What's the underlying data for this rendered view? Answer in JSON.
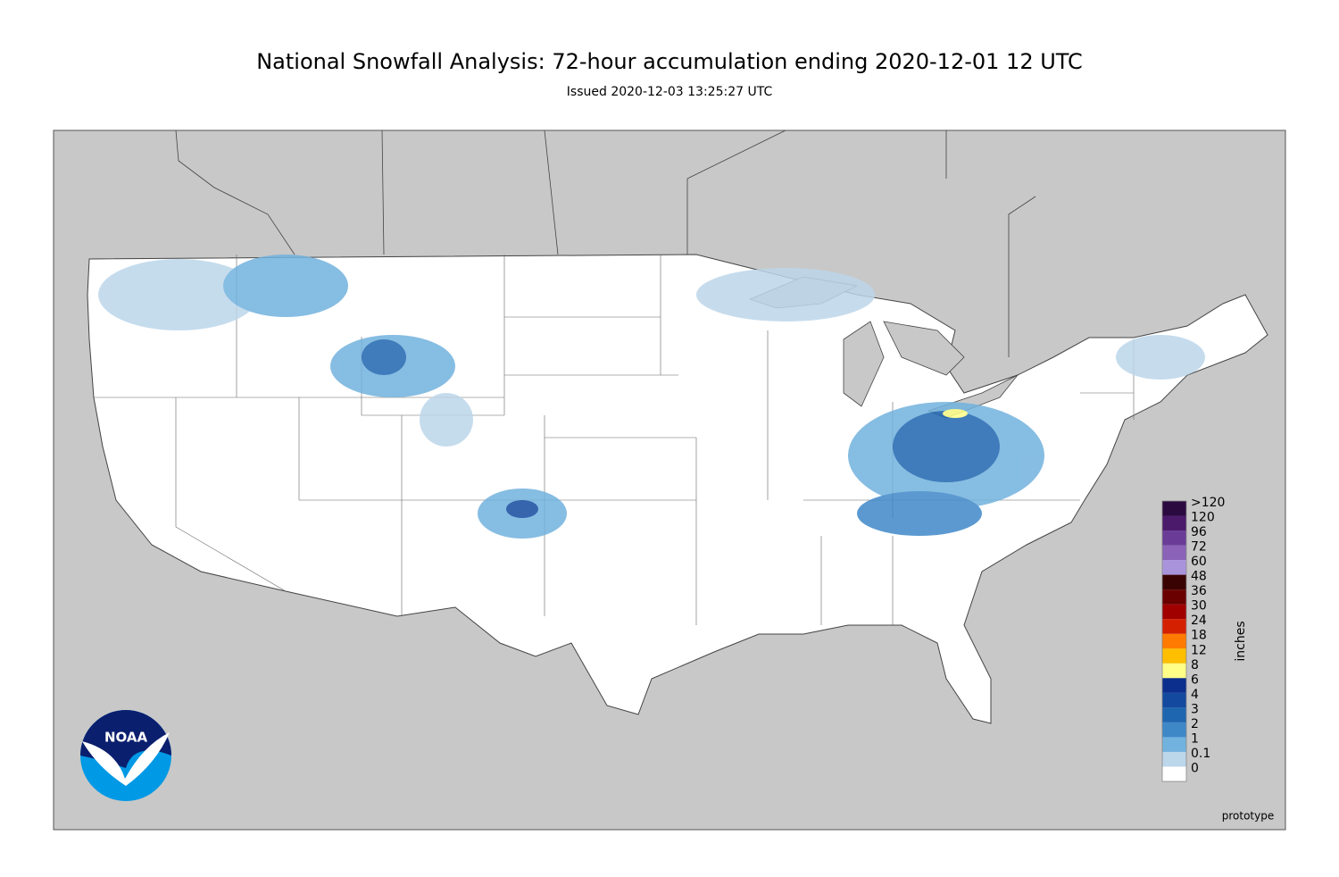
{
  "header": {
    "title": "National Snowfall Analysis: 72-hour accumulation ending 2020-12-01 12 UTC",
    "subtitle": "Issued 2020-12-03 13:25:27 UTC"
  },
  "legend": {
    "unit": "inches",
    "items": [
      {
        "label": ">120",
        "color": "#2b0b3f"
      },
      {
        "label": "120",
        "color": "#4b1a6b"
      },
      {
        "label": "96",
        "color": "#6a3c97"
      },
      {
        "label": "72",
        "color": "#8a63b8"
      },
      {
        "label": "60",
        "color": "#a994dc"
      },
      {
        "label": "48",
        "color": "#3a0303"
      },
      {
        "label": "36",
        "color": "#6a0000"
      },
      {
        "label": "30",
        "color": "#a00000"
      },
      {
        "label": "24",
        "color": "#d52000"
      },
      {
        "label": "18",
        "color": "#ff7a00"
      },
      {
        "label": "12",
        "color": "#ffbf00"
      },
      {
        "label": "8",
        "color": "#ffff88"
      },
      {
        "label": "6",
        "color": "#0c2f8e"
      },
      {
        "label": "4",
        "color": "#134a9f"
      },
      {
        "label": "3",
        "color": "#1f66b0"
      },
      {
        "label": "2",
        "color": "#3f88c8"
      },
      {
        "label": "1",
        "color": "#72b2de"
      },
      {
        "label": "0.1",
        "color": "#bcd6ea"
      },
      {
        "label": "0",
        "color": "#ffffff"
      }
    ]
  },
  "logo": {
    "text": "NOAA"
  },
  "footer": {
    "note": "prototype"
  }
}
